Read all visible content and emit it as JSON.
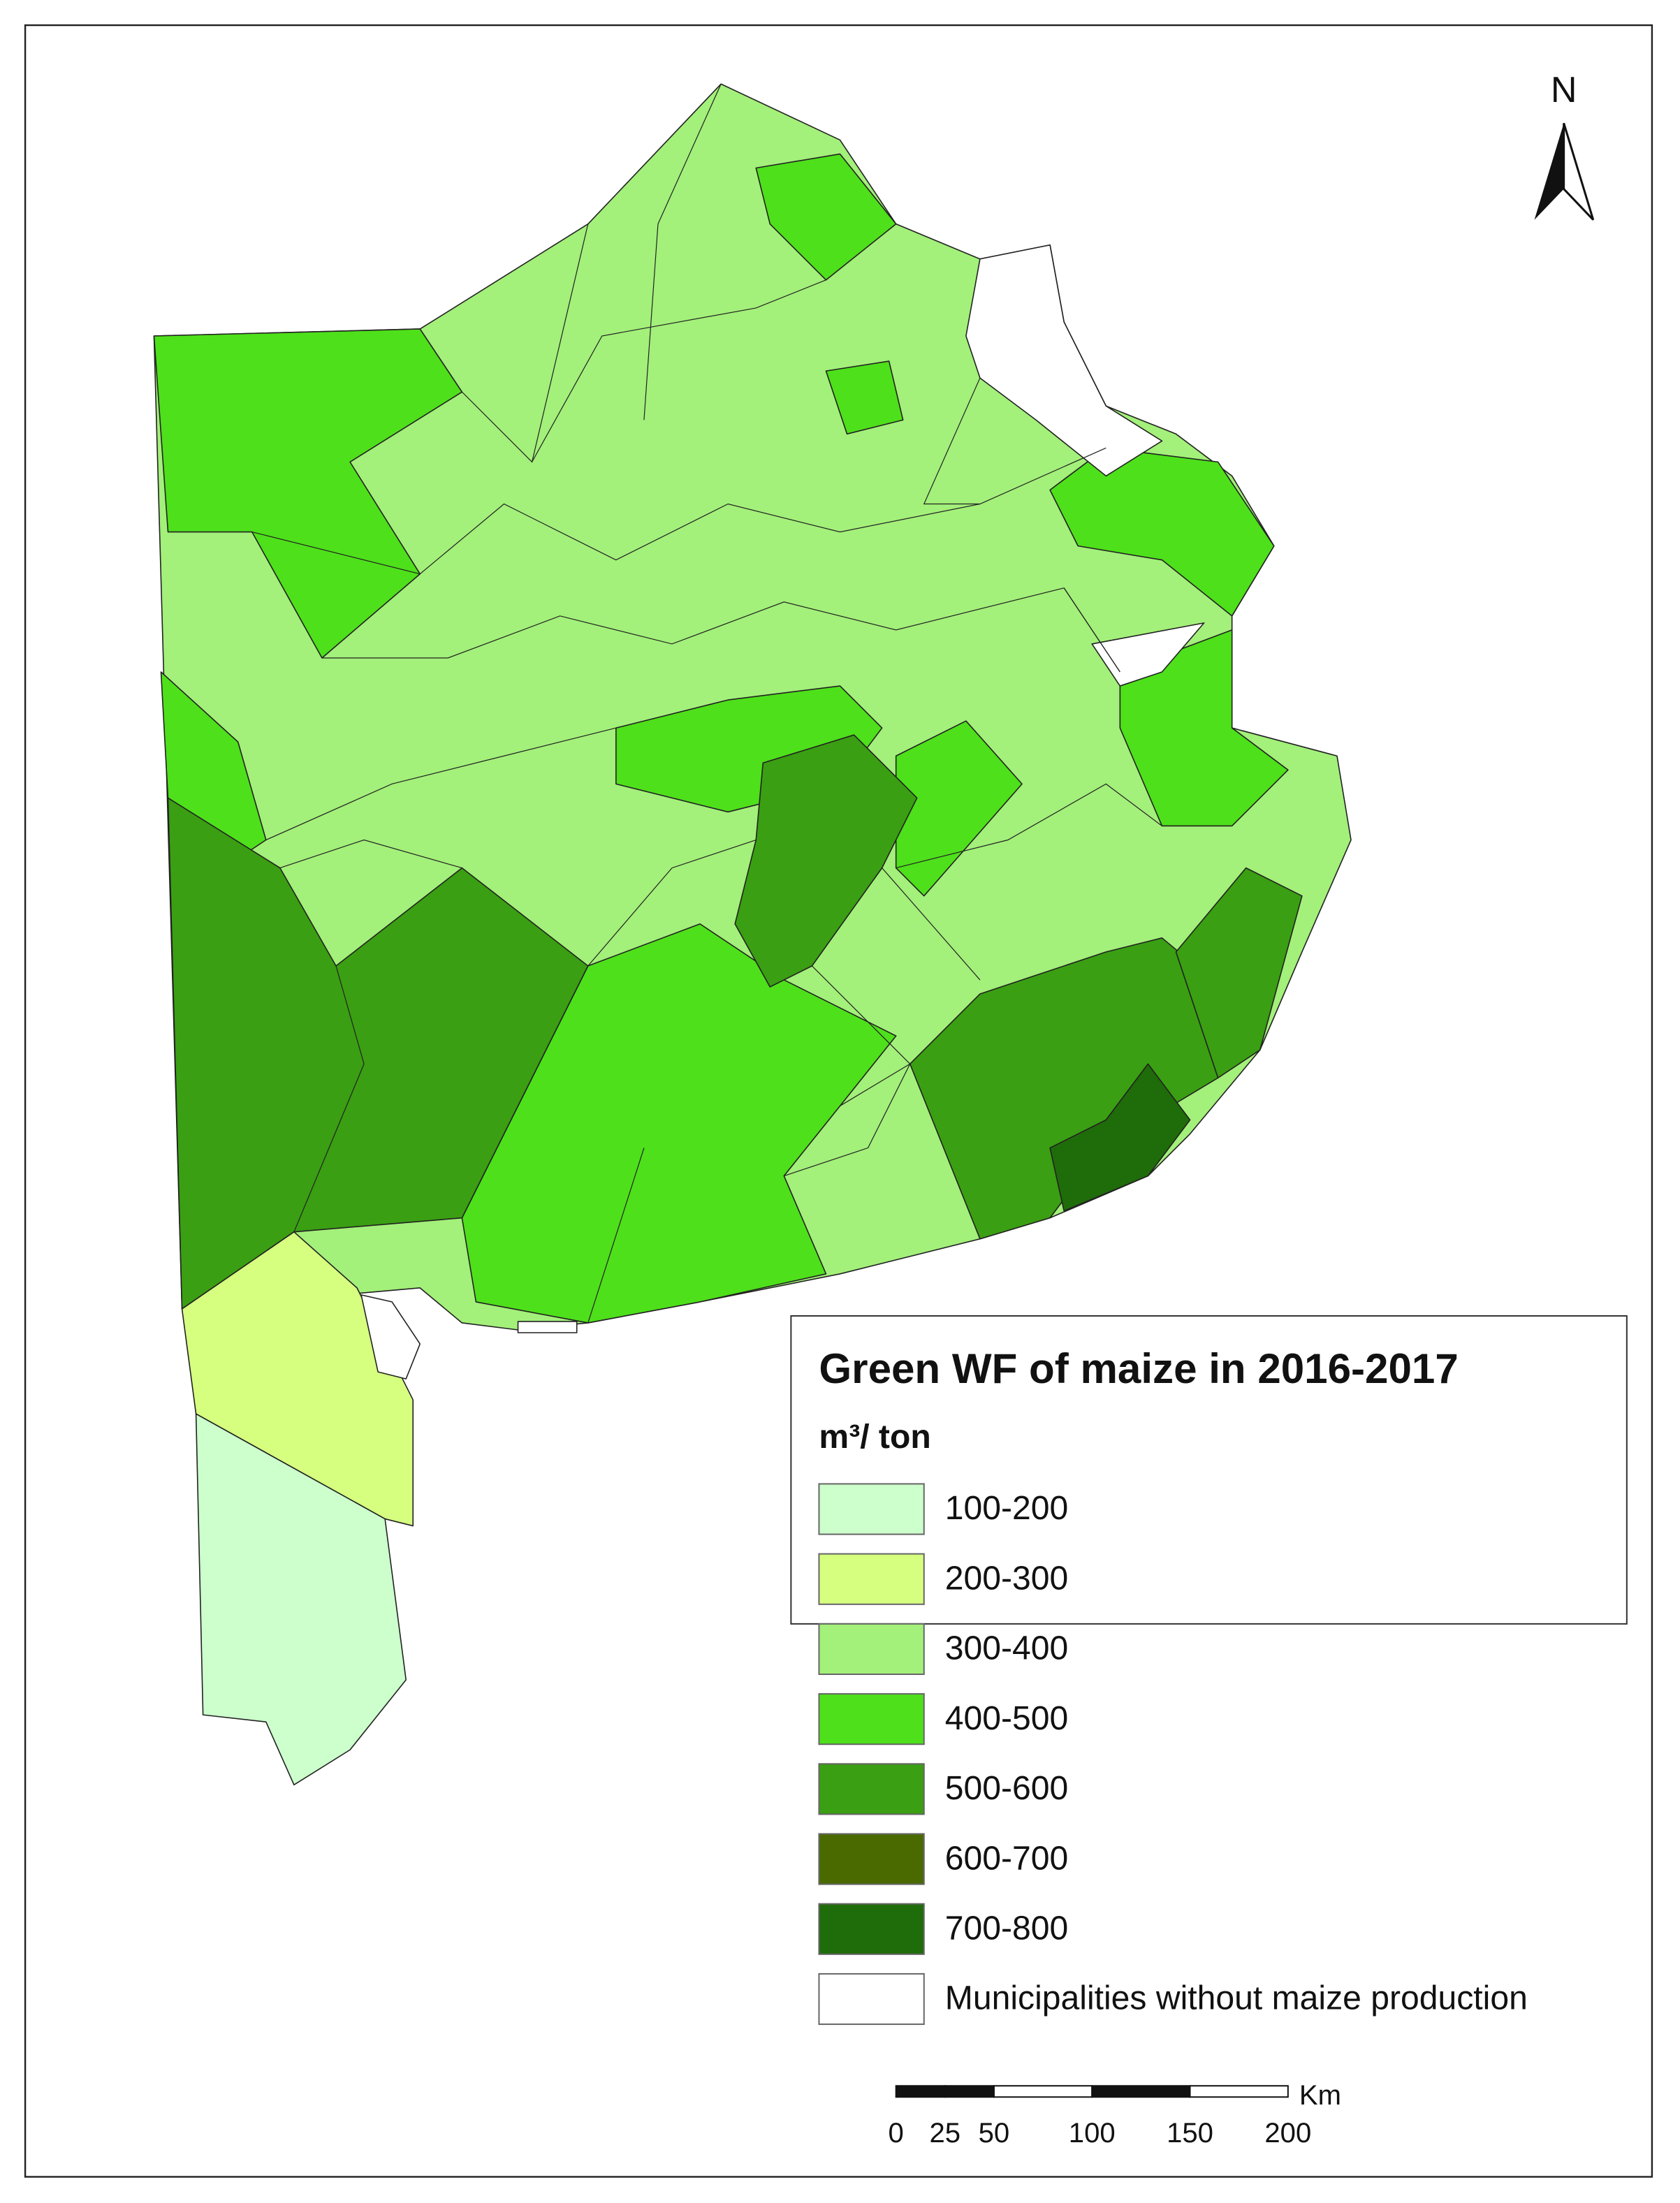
{
  "north_label": "N",
  "legend": {
    "title": "Green WF of maize in 2016-2017",
    "unit": "m³/ ton",
    "items": [
      {
        "label": "100-200",
        "color": "#ccffcc"
      },
      {
        "label": "200-300",
        "color": "#d6ff80"
      },
      {
        "label": "300-400",
        "color": "#a3f07a"
      },
      {
        "label": "400-500",
        "color": "#4ee01a"
      },
      {
        "label": "500-600",
        "color": "#3a9f12"
      },
      {
        "label": "600-700",
        "color": "#4a6a00"
      },
      {
        "label": "700-800",
        "color": "#1f6c0a"
      },
      {
        "label": "Municipalities without maize production",
        "color": "#ffffff"
      }
    ]
  },
  "scale_bar": {
    "unit": "Km",
    "ticks": [
      0,
      25,
      50,
      100,
      150,
      200
    ]
  }
}
